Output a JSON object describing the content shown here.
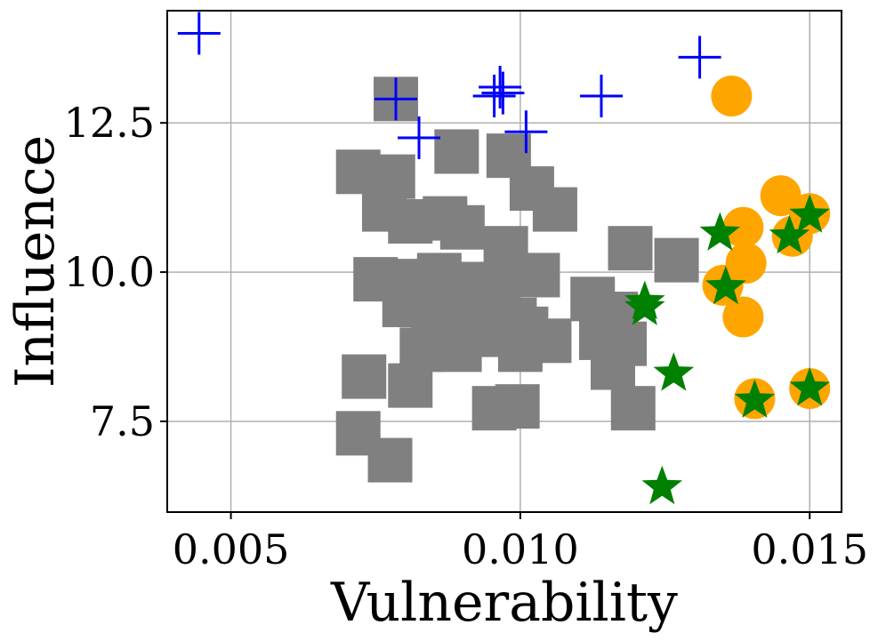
{
  "chart_data": {
    "type": "scatter",
    "title": "",
    "xlabel": "Vulnerability",
    "ylabel": "Influence",
    "xlim": [
      0.0039,
      0.01555
    ],
    "ylim": [
      5.98,
      14.38
    ],
    "grid": true,
    "x_ticks": [
      0.005,
      0.01,
      0.015
    ],
    "x_tick_labels": [
      "0.005",
      "0.010",
      "0.015"
    ],
    "y_ticks": [
      7.5,
      10.0,
      12.5
    ],
    "y_tick_labels": [
      "7.5",
      "10.0",
      "12.5"
    ],
    "series": [
      {
        "name": "gray-squares",
        "marker": "square",
        "color": "#808080",
        "points": [
          [
            0.00785,
            12.9
          ],
          [
            0.0089,
            12.02
          ],
          [
            0.0072,
            11.68
          ],
          [
            0.0078,
            11.6
          ],
          [
            0.00765,
            11.05
          ],
          [
            0.0081,
            10.85
          ],
          [
            0.0087,
            10.9
          ],
          [
            0.009,
            10.75
          ],
          [
            0.0098,
            11.95
          ],
          [
            0.0102,
            11.4
          ],
          [
            0.0106,
            11.05
          ],
          [
            0.00975,
            10.4
          ],
          [
            0.0075,
            9.88
          ],
          [
            0.0082,
            9.85
          ],
          [
            0.0086,
            9.95
          ],
          [
            0.0091,
            9.8
          ],
          [
            0.0096,
            9.8
          ],
          [
            0.0103,
            9.95
          ],
          [
            0.008,
            9.45
          ],
          [
            0.0085,
            9.35
          ],
          [
            0.009,
            9.3
          ],
          [
            0.0094,
            9.4
          ],
          [
            0.0099,
            9.2
          ],
          [
            0.0088,
            9.05
          ],
          [
            0.0093,
            8.95
          ],
          [
            0.0101,
            9.05
          ],
          [
            0.0105,
            8.85
          ],
          [
            0.01,
            8.7
          ],
          [
            0.0083,
            8.7
          ],
          [
            0.00895,
            8.7
          ],
          [
            0.01125,
            9.55
          ],
          [
            0.01165,
            9.3
          ],
          [
            0.0114,
            8.9
          ],
          [
            0.0118,
            8.8
          ],
          [
            0.0116,
            8.4
          ],
          [
            0.0119,
            10.4
          ],
          [
            0.0127,
            10.2
          ],
          [
            0.0073,
            8.25
          ],
          [
            0.0081,
            8.1
          ],
          [
            0.00955,
            7.72
          ],
          [
            0.00995,
            7.75
          ],
          [
            0.01195,
            7.72
          ],
          [
            0.0072,
            7.3
          ],
          [
            0.00775,
            6.85
          ]
        ]
      },
      {
        "name": "blue-plus",
        "marker": "plus",
        "color": "#0000ff",
        "points": [
          [
            0.00445,
            14.0
          ],
          [
            0.00785,
            12.9
          ],
          [
            0.00825,
            12.25
          ],
          [
            0.00955,
            12.95
          ],
          [
            0.00965,
            13.1
          ],
          [
            0.0097,
            13.0
          ],
          [
            0.0101,
            12.35
          ],
          [
            0.0114,
            12.95
          ],
          [
            0.0131,
            13.6
          ]
        ]
      },
      {
        "name": "orange-circles",
        "marker": "circle",
        "color": "#ffa500",
        "points": [
          [
            0.01365,
            12.95
          ],
          [
            0.0145,
            11.28
          ],
          [
            0.015,
            10.98
          ],
          [
            0.01385,
            10.75
          ],
          [
            0.0147,
            10.6
          ],
          [
            0.0139,
            10.15
          ],
          [
            0.0135,
            9.78
          ],
          [
            0.01385,
            9.25
          ],
          [
            0.01405,
            7.88
          ],
          [
            0.015,
            8.05
          ]
        ]
      },
      {
        "name": "green-stars",
        "marker": "star",
        "color": "#008000",
        "points": [
          [
            0.015,
            10.95
          ],
          [
            0.01345,
            10.65
          ],
          [
            0.01465,
            10.6
          ],
          [
            0.01355,
            9.75
          ],
          [
            0.01215,
            9.5
          ],
          [
            0.01215,
            9.4
          ],
          [
            0.01265,
            8.3
          ],
          [
            0.01405,
            7.85
          ],
          [
            0.015,
            8.05
          ],
          [
            0.01245,
            6.4
          ]
        ]
      }
    ]
  }
}
